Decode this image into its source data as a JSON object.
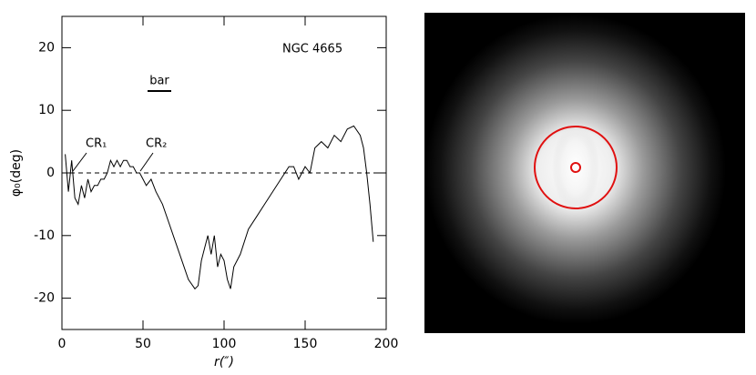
{
  "chart_data": {
    "type": "line",
    "x_label": "r(″)",
    "y_label": "φ₀(deg)",
    "annotations": {
      "name": "NGC 4665",
      "bar": "bar",
      "cr1": "CR₁",
      "cr2": "CR₂"
    },
    "x": [
      2,
      4,
      6,
      8,
      10,
      12,
      14,
      16,
      18,
      20,
      22,
      24,
      26,
      28,
      30,
      32,
      34,
      36,
      38,
      40,
      42,
      44,
      46,
      48,
      50,
      52,
      55,
      58,
      62,
      66,
      70,
      74,
      78,
      82,
      84,
      86,
      88,
      90,
      92,
      94,
      96,
      98,
      100,
      102,
      104,
      106,
      110,
      115,
      120,
      125,
      130,
      135,
      140,
      143,
      146,
      150,
      153,
      156,
      160,
      164,
      168,
      172,
      176,
      180,
      184,
      186,
      188,
      190,
      192
    ],
    "values": [
      3,
      -3,
      2,
      -4,
      -5,
      -2,
      -4,
      -1,
      -3,
      -2,
      -2,
      -1,
      -1,
      0,
      2,
      1,
      2,
      1,
      2,
      2,
      1,
      1,
      0,
      0,
      -1,
      -2,
      -1,
      -3,
      -5,
      -8,
      -11,
      -14,
      -17,
      -18.5,
      -18,
      -14,
      -12,
      -10,
      -13,
      -10,
      -15,
      -13,
      -14,
      -17,
      -18.5,
      -15,
      -13,
      -9,
      -7,
      -5,
      -3,
      -1,
      1,
      1,
      -1,
      1,
      0,
      4,
      5,
      4,
      6,
      5,
      7,
      7.5,
      6,
      4,
      0,
      -5,
      -11
    ],
    "color": "#000000",
    "hline": 0,
    "xlim": [
      0,
      200
    ],
    "ylim": [
      -25,
      25
    ],
    "xticks": [
      0,
      50,
      100,
      150,
      200
    ],
    "yticks": [
      -20,
      -10,
      0,
      10,
      20
    ]
  }
}
